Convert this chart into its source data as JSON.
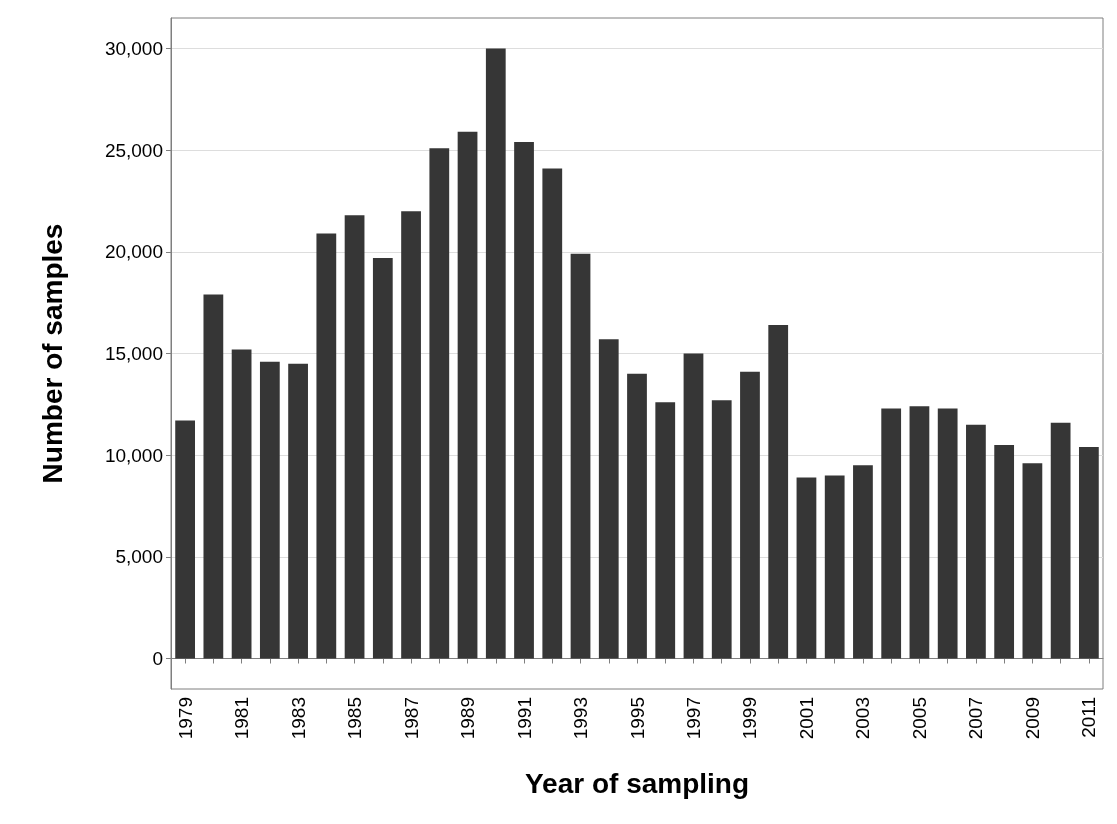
{
  "chart_data": {
    "type": "bar",
    "xlabel": "Year of sampling",
    "ylabel": "Number of samples",
    "categories": [
      "1979",
      null,
      "1981",
      null,
      "1983",
      null,
      "1985",
      null,
      "1987",
      null,
      "1989",
      null,
      "1991",
      null,
      "1993",
      null,
      "1995",
      null,
      "1997",
      null,
      "1999",
      null,
      "2001",
      null,
      "2003",
      null,
      "2005",
      null,
      "2007",
      null,
      "2009",
      null,
      "2011"
    ],
    "values": [
      11700,
      17900,
      15200,
      14600,
      14500,
      20900,
      21800,
      19700,
      22000,
      25100,
      25900,
      30000,
      25400,
      24100,
      19900,
      15700,
      14000,
      12600,
      15000,
      12700,
      14100,
      16400,
      8900,
      9000,
      9500,
      12300,
      12400,
      12300,
      11500,
      10500,
      9600,
      11600,
      10400
    ],
    "color": "#363636",
    "ylim": [
      -1500,
      31500
    ],
    "yticks": [
      {
        "value": 0,
        "label": "0"
      },
      {
        "value": 5000,
        "label": "5,000"
      },
      {
        "value": 10000,
        "label": "10,000"
      },
      {
        "value": 15000,
        "label": "15,000"
      },
      {
        "value": 20000,
        "label": "20,000"
      },
      {
        "value": 25000,
        "label": "25,000"
      },
      {
        "value": 30000,
        "label": "30,000"
      }
    ],
    "grid": "y"
  }
}
